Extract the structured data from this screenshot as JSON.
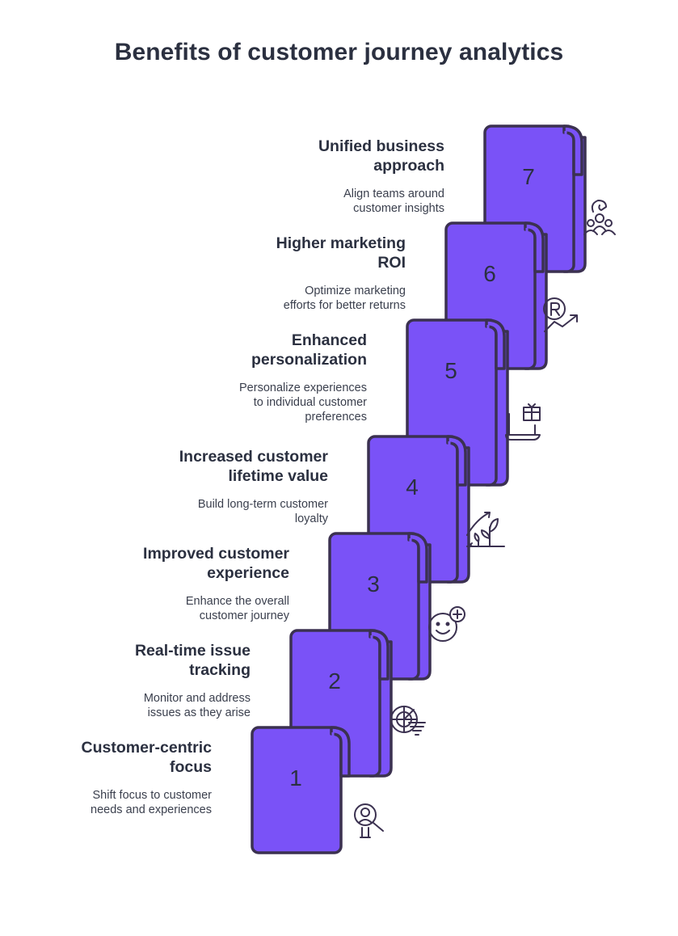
{
  "title": "Benefits of customer journey analytics",
  "colors": {
    "step_fill": "#7a52f7",
    "outline": "#3b3150",
    "text": "#2b3040"
  },
  "steps": [
    {
      "number": "1",
      "title": "Customer-centric focus",
      "title_lines": [
        "Customer-centric",
        "focus"
      ],
      "description_lines": [
        "Shift focus to customer",
        "needs and experiences"
      ],
      "icon": "person-search-icon"
    },
    {
      "number": "2",
      "title": "Real-time issue tracking",
      "title_lines": [
        "Real-time issue",
        "tracking"
      ],
      "description_lines": [
        "Monitor and address",
        "issues as they arise"
      ],
      "icon": "radar-tornado-icon"
    },
    {
      "number": "3",
      "title": "Improved customer experience",
      "title_lines": [
        "Improved customer",
        "experience"
      ],
      "description_lines": [
        "Enhance the overall",
        "customer journey"
      ],
      "icon": "smiley-plus-icon"
    },
    {
      "number": "4",
      "title": "Increased customer lifetime value",
      "title_lines": [
        "Increased customer",
        "lifetime value"
      ],
      "description_lines": [
        "Build long-term customer",
        "loyalty"
      ],
      "icon": "growth-plant-icon"
    },
    {
      "number": "5",
      "title": "Enhanced personalization",
      "title_lines": [
        "Enhanced",
        "personalization"
      ],
      "description_lines": [
        "Personalize experiences",
        "to individual customer",
        "preferences"
      ],
      "icon": "laptop-gift-icon"
    },
    {
      "number": "6",
      "title": "Higher marketing ROI",
      "title_lines": [
        "Higher marketing",
        "ROI"
      ],
      "description_lines": [
        "Optimize marketing",
        "efforts for better returns"
      ],
      "icon": "coin-growth-icon"
    },
    {
      "number": "7",
      "title": "Unified business approach",
      "title_lines": [
        "Unified business",
        "approach"
      ],
      "description_lines": [
        "Align teams around",
        "customer insights"
      ],
      "icon": "team-hand-icon"
    }
  ]
}
